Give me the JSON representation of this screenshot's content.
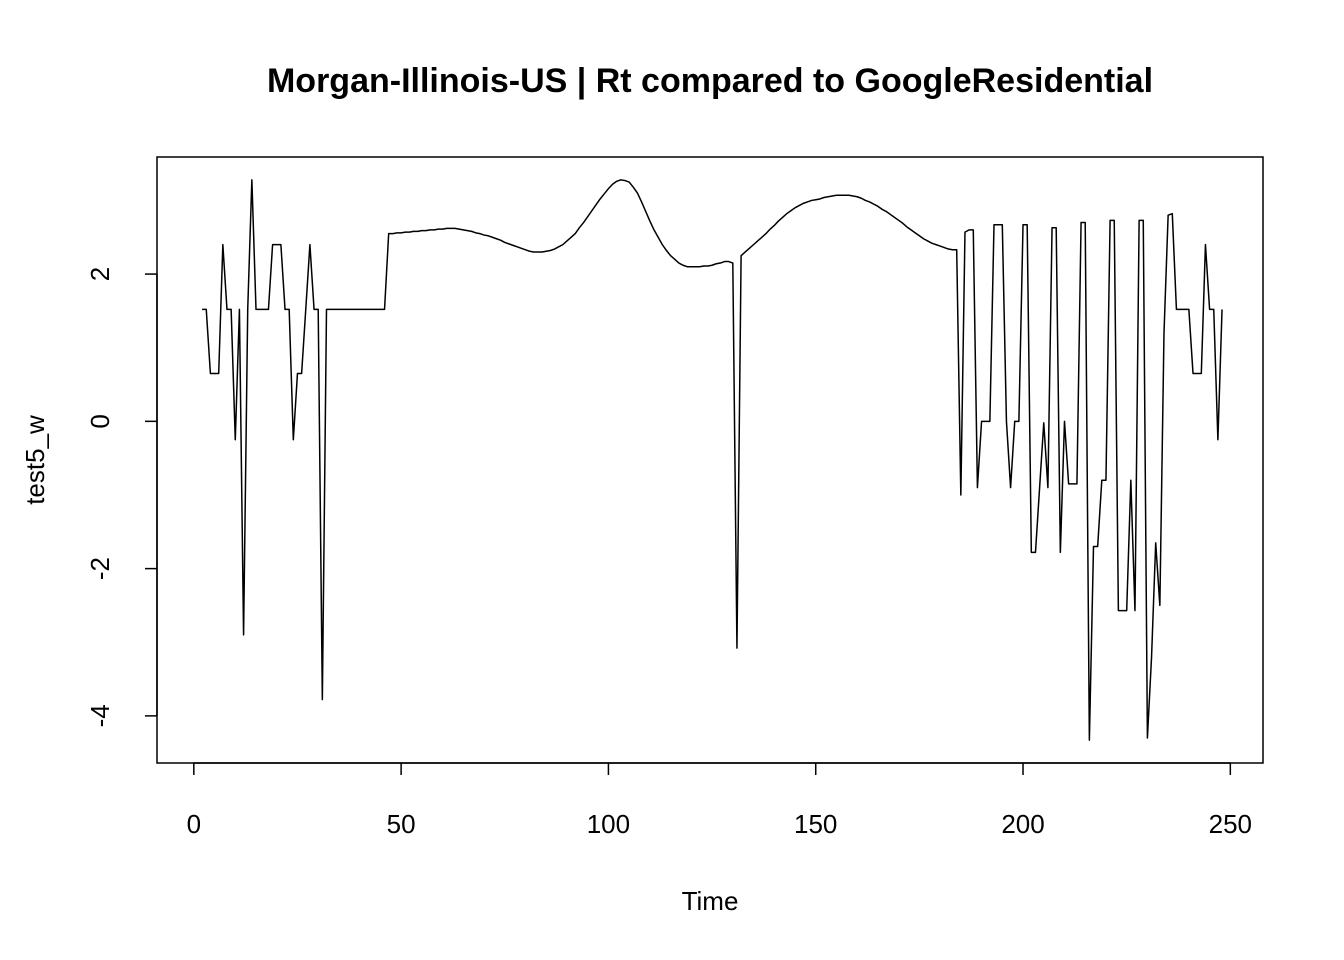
{
  "chart_data": {
    "type": "line",
    "title": "Morgan-Illinois-US | Rt compared to GoogleResidential",
    "x_label": "Time",
    "y_label": "test5_w",
    "xlim": [
      -8.88,
      257.88
    ],
    "ylim": [
      -4.64,
      3.59
    ],
    "xticks": [
      0,
      50,
      100,
      150,
      200,
      250
    ],
    "yticks": [
      -4,
      -2,
      0,
      2
    ],
    "grid": false,
    "series": [
      {
        "color": "#000000",
        "x": [
          2,
          3,
          4,
          5,
          6,
          7,
          8,
          9,
          10,
          11,
          12,
          13,
          14,
          15,
          16,
          17,
          18,
          19,
          20,
          21,
          22,
          23,
          24,
          25,
          26,
          27,
          28,
          29,
          30,
          31,
          32,
          33,
          34,
          35,
          36,
          37,
          38,
          39,
          40,
          41,
          42,
          43,
          44,
          45,
          46,
          47,
          48,
          49,
          50,
          51,
          52,
          53,
          54,
          55,
          56,
          57,
          58,
          59,
          60,
          61,
          62,
          63,
          64,
          65,
          66,
          67,
          68,
          69,
          70,
          71,
          72,
          73,
          74,
          75,
          76,
          77,
          78,
          79,
          80,
          81,
          82,
          83,
          84,
          85,
          86,
          87,
          88,
          89,
          90,
          91,
          92,
          93,
          94,
          95,
          96,
          97,
          98,
          99,
          100,
          101,
          102,
          103,
          104,
          105,
          106,
          107,
          108,
          109,
          110,
          111,
          112,
          113,
          114,
          115,
          116,
          117,
          118,
          119,
          120,
          121,
          122,
          123,
          124,
          125,
          126,
          127,
          128,
          129,
          130,
          131,
          132,
          133,
          134,
          135,
          136,
          137,
          138,
          139,
          140,
          141,
          142,
          143,
          144,
          145,
          146,
          147,
          148,
          149,
          150,
          151,
          152,
          153,
          154,
          155,
          156,
          157,
          158,
          159,
          160,
          161,
          162,
          163,
          164,
          165,
          166,
          167,
          168,
          169,
          170,
          171,
          172,
          173,
          174,
          175,
          176,
          177,
          178,
          179,
          180,
          181,
          182,
          183,
          184,
          185,
          186,
          187,
          188,
          189,
          190,
          191,
          192,
          193,
          194,
          195,
          196,
          197,
          198,
          199,
          200,
          201,
          202,
          203,
          204,
          205,
          206,
          207,
          208,
          209,
          210,
          211,
          212,
          213,
          214,
          215,
          216,
          217,
          218,
          219,
          220,
          221,
          222,
          223,
          224,
          225,
          226,
          227,
          228,
          229,
          230,
          231,
          232,
          233,
          234,
          235,
          236,
          237,
          238,
          239,
          240,
          241,
          242,
          243,
          244,
          245,
          246,
          247,
          248
        ],
        "values": [
          1.52,
          1.52,
          0.65,
          0.65,
          0.65,
          2.4,
          1.52,
          1.52,
          -0.25,
          1.52,
          -2.9,
          1.52,
          3.28,
          1.52,
          1.52,
          1.52,
          1.52,
          2.4,
          2.4,
          2.4,
          1.52,
          1.52,
          -0.25,
          0.65,
          0.65,
          1.52,
          2.4,
          1.52,
          1.52,
          -3.78,
          1.52,
          1.52,
          1.52,
          1.52,
          1.52,
          1.52,
          1.52,
          1.52,
          1.52,
          1.52,
          1.52,
          1.52,
          1.52,
          1.52,
          1.52,
          2.55,
          2.55,
          2.56,
          2.56,
          2.57,
          2.57,
          2.58,
          2.58,
          2.59,
          2.59,
          2.6,
          2.6,
          2.61,
          2.61,
          2.62,
          2.62,
          2.62,
          2.61,
          2.6,
          2.59,
          2.58,
          2.56,
          2.55,
          2.53,
          2.52,
          2.5,
          2.48,
          2.46,
          2.43,
          2.41,
          2.39,
          2.37,
          2.35,
          2.33,
          2.31,
          2.3,
          2.3,
          2.3,
          2.31,
          2.32,
          2.34,
          2.37,
          2.4,
          2.45,
          2.5,
          2.55,
          2.63,
          2.7,
          2.78,
          2.86,
          2.94,
          3.02,
          3.09,
          3.16,
          3.22,
          3.26,
          3.28,
          3.27,
          3.25,
          3.18,
          3.1,
          2.98,
          2.85,
          2.72,
          2.6,
          2.5,
          2.4,
          2.32,
          2.25,
          2.2,
          2.15,
          2.12,
          2.1,
          2.1,
          2.1,
          2.1,
          2.11,
          2.11,
          2.12,
          2.14,
          2.15,
          2.17,
          2.17,
          2.15,
          -3.08,
          2.25,
          2.3,
          2.35,
          2.4,
          2.45,
          2.5,
          2.55,
          2.61,
          2.66,
          2.72,
          2.77,
          2.82,
          2.86,
          2.9,
          2.93,
          2.96,
          2.98,
          3.0,
          3.01,
          3.02,
          3.04,
          3.05,
          3.06,
          3.07,
          3.07,
          3.07,
          3.07,
          3.06,
          3.05,
          3.03,
          3.0,
          2.98,
          2.95,
          2.92,
          2.88,
          2.85,
          2.81,
          2.77,
          2.73,
          2.69,
          2.64,
          2.6,
          2.56,
          2.52,
          2.48,
          2.45,
          2.42,
          2.4,
          2.38,
          2.36,
          2.34,
          2.33,
          2.33,
          -1.0,
          2.57,
          2.6,
          2.6,
          -0.9,
          0,
          0,
          0,
          2.67,
          2.67,
          2.67,
          0,
          -0.9,
          0,
          0,
          2.67,
          2.67,
          -1.78,
          -1.78,
          -0.9,
          -0.02,
          -0.9,
          2.63,
          2.63,
          -1.78,
          0,
          -0.85,
          -0.85,
          -0.85,
          2.7,
          2.7,
          -4.33,
          -1.7,
          -1.7,
          -0.8,
          -0.8,
          2.73,
          2.73,
          -2.57,
          -2.57,
          -2.57,
          -0.8,
          -2.57,
          2.73,
          2.73,
          -4.3,
          -3.2,
          -1.65,
          -2.5,
          1.2,
          2.8,
          2.82,
          1.52,
          1.52,
          1.52,
          1.52,
          0.65,
          0.65,
          0.65,
          2.4,
          1.52,
          1.52,
          -0.25,
          1.52
        ]
      }
    ]
  }
}
